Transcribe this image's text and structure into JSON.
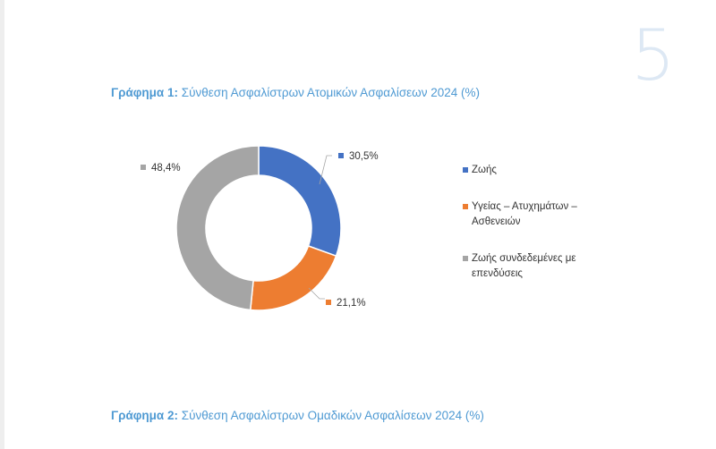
{
  "page": {
    "number": "5"
  },
  "caption1": {
    "label": "Γράφημα 1:",
    "text": " Σύνθεση Ασφαλίστρων Ατομικών Ασφαλίσεων 2024 (%)"
  },
  "caption2": {
    "label": "Γράφημα 2:",
    "text": " Σύνθεση Ασφαλίστρων Ομαδικών Ασφαλίσεων 2024 (%)"
  },
  "chart_data": {
    "type": "pie",
    "donut": true,
    "title": "",
    "categories": [
      "Ζωής",
      "Υγείας – Ατυχημάτων – Ασθενειών",
      "Ζωής συνδεδεμένες με επενδύσεις"
    ],
    "values": [
      30.5,
      21.1,
      48.4
    ],
    "data_labels": [
      "30,5%",
      "21,1%",
      "48,4%"
    ],
    "colors": [
      "#4472c4",
      "#ed7d31",
      "#a5a5a5"
    ],
    "legend_position": "right"
  }
}
